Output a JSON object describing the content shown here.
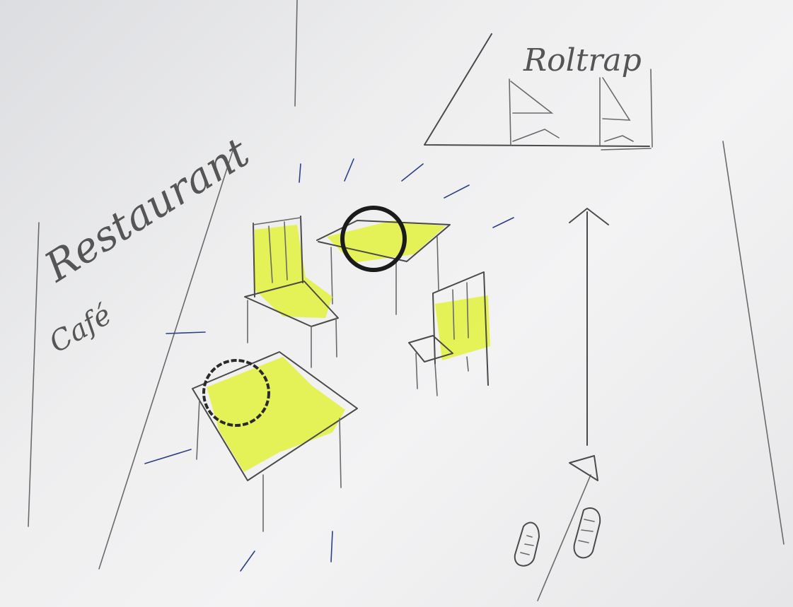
{
  "labels": {
    "restaurant": "Restaurant",
    "cafe": "Café",
    "escalator": "Roltrap"
  },
  "colors": {
    "paper": "#eeeeef",
    "pencil": "#4a4a4a",
    "highlighter": "#e4f24a",
    "ink": "#2b3f8a"
  }
}
